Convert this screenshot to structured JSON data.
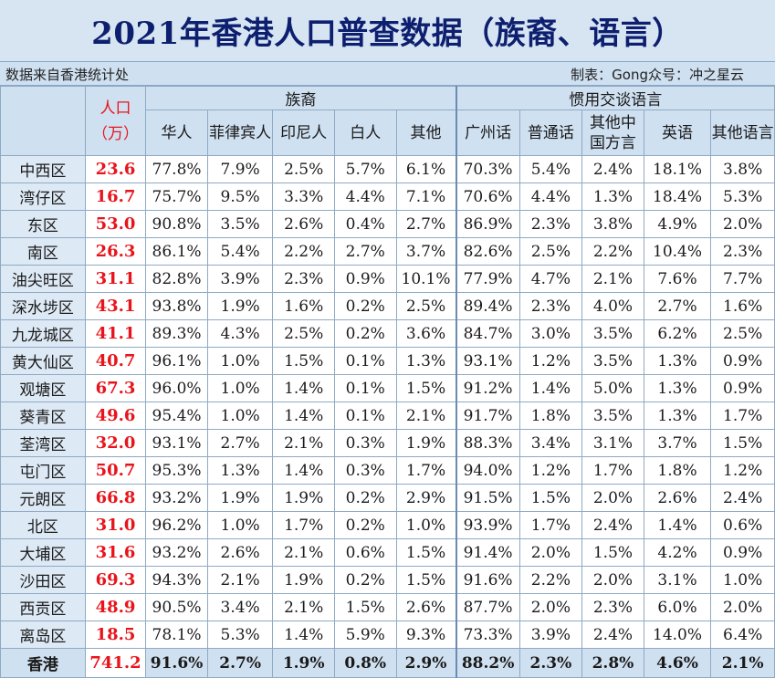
{
  "title": "2021年香港人口普查数据（族裔、语言）",
  "source_text": "数据来自香港统计处",
  "maker_text": "制表：Gong众号：冲之星云",
  "headers": {
    "population": "人口（万）",
    "ethnicity_group": "族裔",
    "language_group": "惯用交谈语言",
    "ethnicity_cols": [
      "华人",
      "菲律宾人",
      "印尼人",
      "白人",
      "其他"
    ],
    "language_cols": [
      "广州话",
      "普通话",
      "其他中国方言",
      "英语",
      "其他语言"
    ]
  },
  "rows": [
    {
      "name": "中西区",
      "pop": "23.6",
      "eth": [
        "77.8%",
        "7.9%",
        "2.5%",
        "5.7%",
        "6.1%"
      ],
      "lang": [
        "70.3%",
        "5.4%",
        "2.4%",
        "18.1%",
        "3.8%"
      ]
    },
    {
      "name": "湾仔区",
      "pop": "16.7",
      "eth": [
        "75.7%",
        "9.5%",
        "3.3%",
        "4.4%",
        "7.1%"
      ],
      "lang": [
        "70.6%",
        "4.4%",
        "1.3%",
        "18.4%",
        "5.3%"
      ]
    },
    {
      "name": "东区",
      "pop": "53.0",
      "eth": [
        "90.8%",
        "3.5%",
        "2.6%",
        "0.4%",
        "2.7%"
      ],
      "lang": [
        "86.9%",
        "2.3%",
        "3.8%",
        "4.9%",
        "2.0%"
      ]
    },
    {
      "name": "南区",
      "pop": "26.3",
      "eth": [
        "86.1%",
        "5.4%",
        "2.2%",
        "2.7%",
        "3.7%"
      ],
      "lang": [
        "82.6%",
        "2.5%",
        "2.2%",
        "10.4%",
        "2.3%"
      ]
    },
    {
      "name": "油尖旺区",
      "pop": "31.1",
      "eth": [
        "82.8%",
        "3.9%",
        "2.3%",
        "0.9%",
        "10.1%"
      ],
      "lang": [
        "77.9%",
        "4.7%",
        "2.1%",
        "7.6%",
        "7.7%"
      ]
    },
    {
      "name": "深水埗区",
      "pop": "43.1",
      "eth": [
        "93.8%",
        "1.9%",
        "1.6%",
        "0.2%",
        "2.5%"
      ],
      "lang": [
        "89.4%",
        "2.3%",
        "4.0%",
        "2.7%",
        "1.6%"
      ]
    },
    {
      "name": "九龙城区",
      "pop": "41.1",
      "eth": [
        "89.3%",
        "4.3%",
        "2.5%",
        "0.2%",
        "3.6%"
      ],
      "lang": [
        "84.7%",
        "3.0%",
        "3.5%",
        "6.2%",
        "2.5%"
      ]
    },
    {
      "name": "黄大仙区",
      "pop": "40.7",
      "eth": [
        "96.1%",
        "1.0%",
        "1.5%",
        "0.1%",
        "1.3%"
      ],
      "lang": [
        "93.1%",
        "1.2%",
        "3.5%",
        "1.3%",
        "0.9%"
      ]
    },
    {
      "name": "观塘区",
      "pop": "67.3",
      "eth": [
        "96.0%",
        "1.0%",
        "1.4%",
        "0.1%",
        "1.5%"
      ],
      "lang": [
        "91.2%",
        "1.4%",
        "5.0%",
        "1.3%",
        "0.9%"
      ]
    },
    {
      "name": "葵青区",
      "pop": "49.6",
      "eth": [
        "95.4%",
        "1.0%",
        "1.4%",
        "0.1%",
        "2.1%"
      ],
      "lang": [
        "91.7%",
        "1.8%",
        "3.5%",
        "1.3%",
        "1.7%"
      ]
    },
    {
      "name": "荃湾区",
      "pop": "32.0",
      "eth": [
        "93.1%",
        "2.7%",
        "2.1%",
        "0.3%",
        "1.9%"
      ],
      "lang": [
        "88.3%",
        "3.4%",
        "3.1%",
        "3.7%",
        "1.5%"
      ]
    },
    {
      "name": "屯门区",
      "pop": "50.7",
      "eth": [
        "95.3%",
        "1.3%",
        "1.4%",
        "0.3%",
        "1.7%"
      ],
      "lang": [
        "94.0%",
        "1.2%",
        "1.7%",
        "1.8%",
        "1.2%"
      ]
    },
    {
      "name": "元朗区",
      "pop": "66.8",
      "eth": [
        "93.2%",
        "1.9%",
        "1.9%",
        "0.2%",
        "2.9%"
      ],
      "lang": [
        "91.5%",
        "1.5%",
        "2.0%",
        "2.6%",
        "2.4%"
      ]
    },
    {
      "name": "北区",
      "pop": "31.0",
      "eth": [
        "96.2%",
        "1.0%",
        "1.7%",
        "0.2%",
        "1.0%"
      ],
      "lang": [
        "93.9%",
        "1.7%",
        "2.4%",
        "1.4%",
        "0.6%"
      ]
    },
    {
      "name": "大埔区",
      "pop": "31.6",
      "eth": [
        "93.2%",
        "2.6%",
        "2.1%",
        "0.6%",
        "1.5%"
      ],
      "lang": [
        "91.4%",
        "2.0%",
        "1.5%",
        "4.2%",
        "0.9%"
      ]
    },
    {
      "name": "沙田区",
      "pop": "69.3",
      "eth": [
        "94.3%",
        "2.1%",
        "1.9%",
        "0.2%",
        "1.5%"
      ],
      "lang": [
        "91.6%",
        "2.2%",
        "2.0%",
        "3.1%",
        "1.0%"
      ]
    },
    {
      "name": "西贡区",
      "pop": "48.9",
      "eth": [
        "90.5%",
        "3.4%",
        "2.1%",
        "1.5%",
        "2.6%"
      ],
      "lang": [
        "87.7%",
        "2.0%",
        "2.3%",
        "6.0%",
        "2.0%"
      ]
    },
    {
      "name": "离岛区",
      "pop": "18.5",
      "eth": [
        "78.1%",
        "5.3%",
        "1.4%",
        "5.9%",
        "9.3%"
      ],
      "lang": [
        "73.3%",
        "3.9%",
        "2.4%",
        "14.0%",
        "6.4%"
      ]
    }
  ],
  "total": {
    "name": "香港",
    "pop": "741.2",
    "eth": [
      "91.6%",
      "2.7%",
      "1.9%",
      "0.8%",
      "2.9%"
    ],
    "lang": [
      "88.2%",
      "2.3%",
      "2.8%",
      "4.6%",
      "2.1%"
    ]
  },
  "colors": {
    "title": "#0d1f6e",
    "population": "#e8141b",
    "header_bg": "#cfe0f1",
    "grid": "#8fa9c4"
  }
}
